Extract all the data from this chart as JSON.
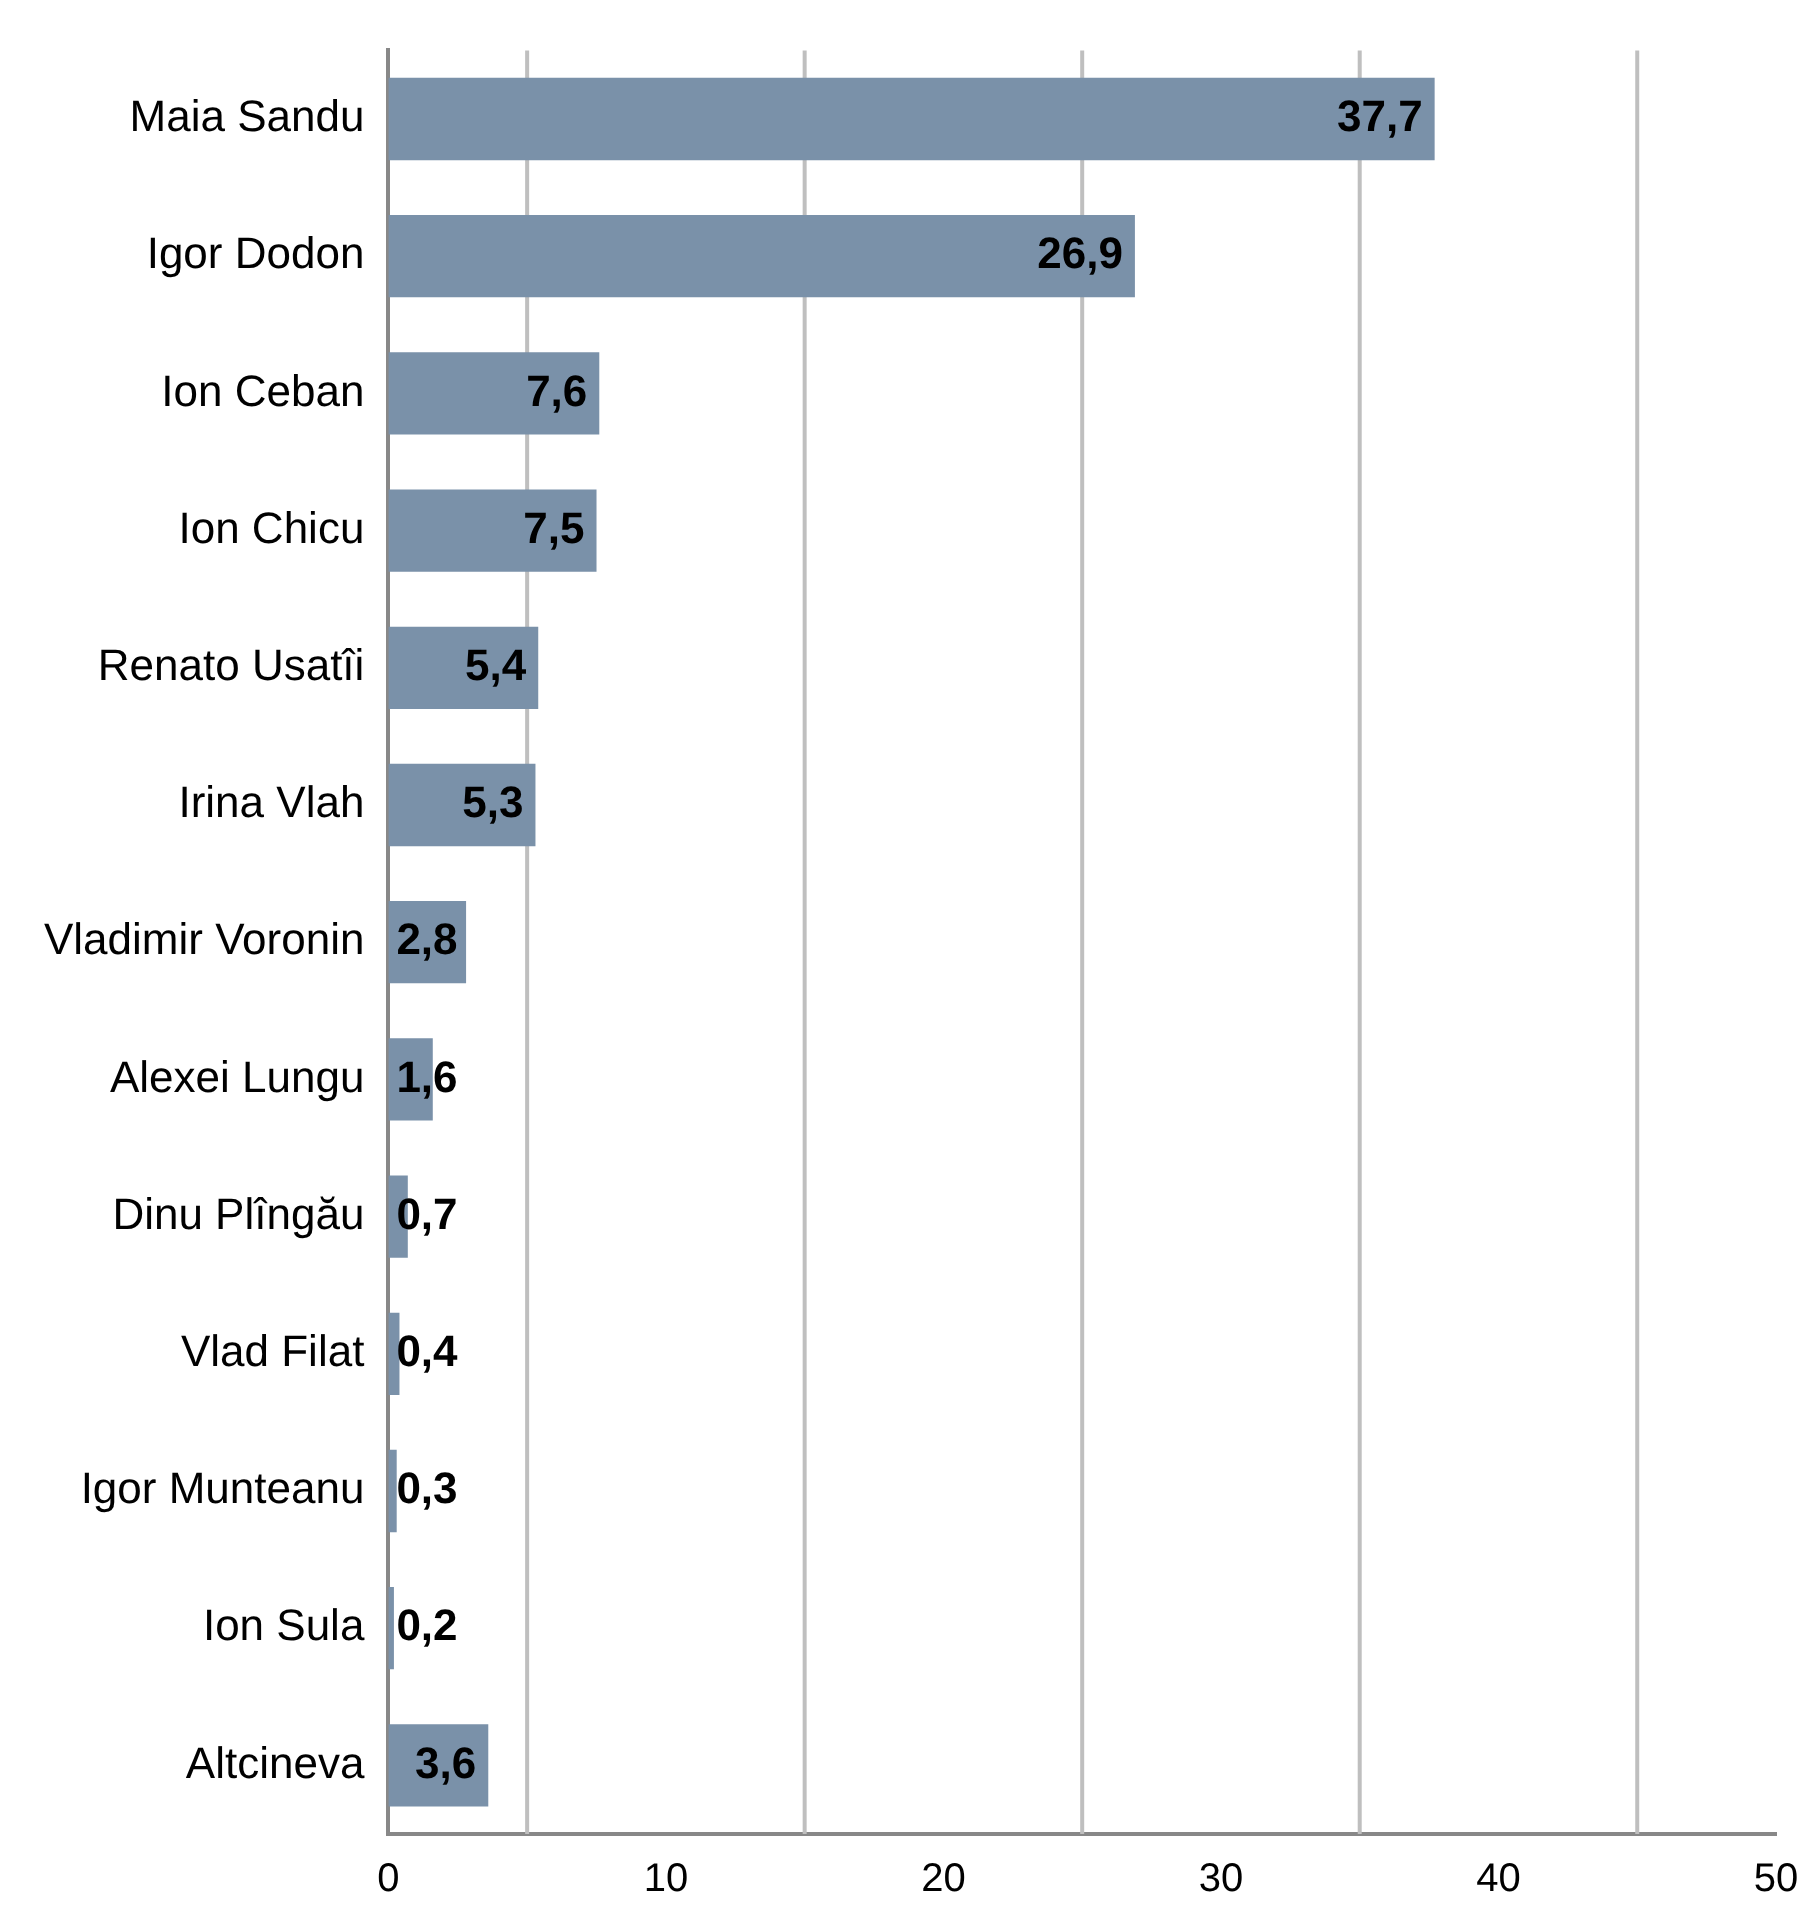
{
  "chart_data": {
    "type": "bar",
    "orientation": "horizontal",
    "categories": [
      "Maia Sandu",
      "Igor Dodon",
      "Ion Ceban",
      "Ion Chicu",
      "Renato Usatîi",
      "Irina Vlah",
      "Vladimir Voronin",
      "Alexei Lungu",
      "Dinu Plîngău",
      "Vlad Filat",
      "Igor Munteanu",
      "Ion Sula",
      "Altcineva"
    ],
    "values": [
      37.7,
      26.9,
      7.6,
      7.5,
      5.4,
      5.3,
      2.8,
      1.6,
      0.7,
      0.4,
      0.3,
      0.2,
      3.6
    ],
    "value_labels": [
      "37,7",
      "26,9",
      "7,6",
      "7,5",
      "5,4",
      "5,3",
      "2,8",
      "1,6",
      "0,7",
      "0,4",
      "0,3",
      "0,2",
      "3,6"
    ],
    "color": "#7a91a9",
    "xlim": [
      0,
      50
    ],
    "xticks": [
      0,
      10,
      20,
      30,
      40,
      50
    ],
    "grid": false,
    "legend": false,
    "ref_lines": [
      {
        "axis": "x",
        "value": 5,
        "color": "#bfbfbf"
      },
      {
        "axis": "x",
        "value": 15,
        "color": "#bfbfbf"
      },
      {
        "axis": "x",
        "value": 25,
        "color": "#bfbfbf"
      },
      {
        "axis": "x",
        "value": 35,
        "color": "#bfbfbf"
      },
      {
        "axis": "x",
        "value": 45,
        "color": "#bfbfbf"
      }
    ]
  }
}
